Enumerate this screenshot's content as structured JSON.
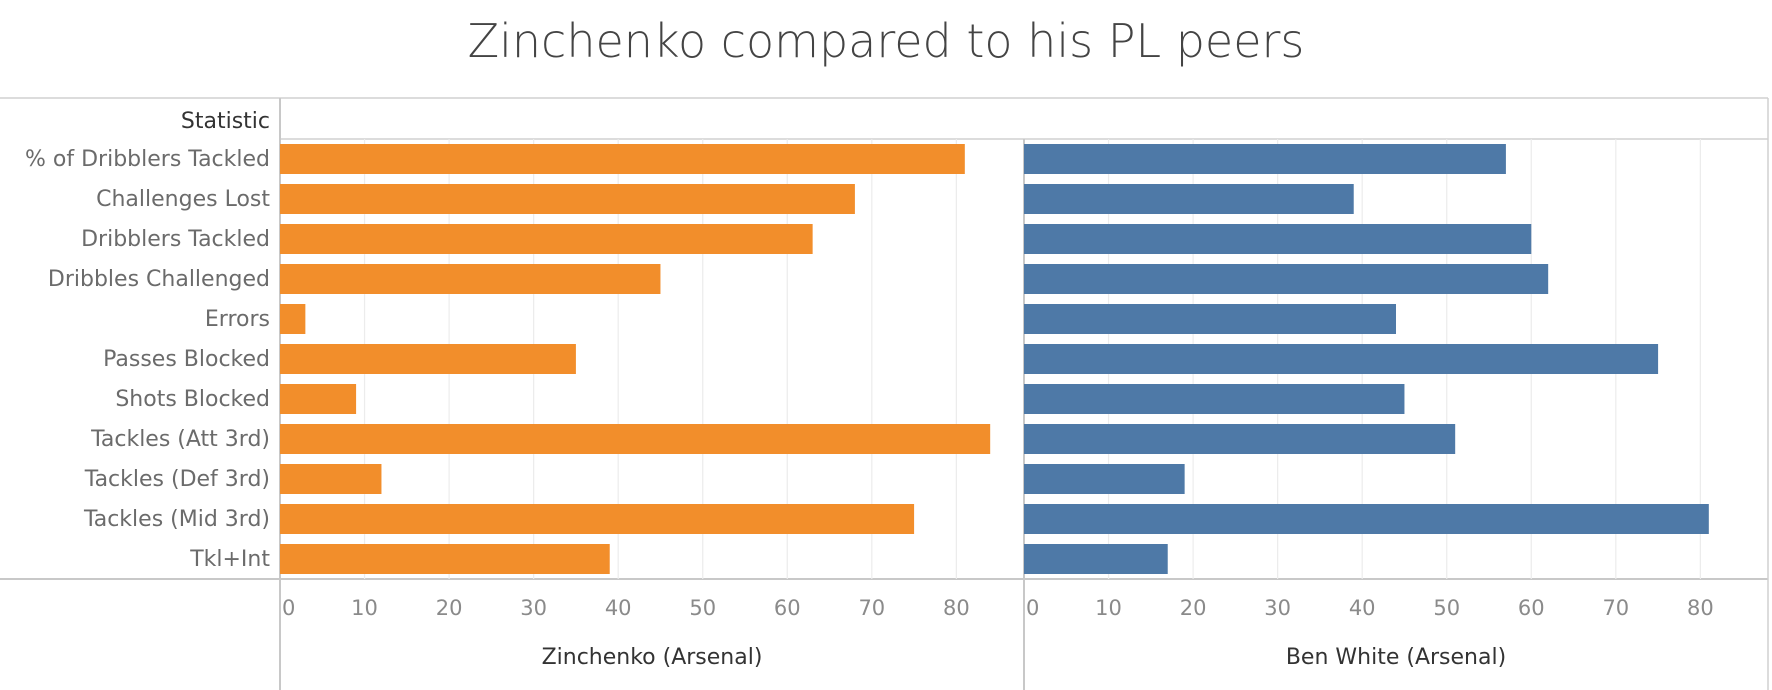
{
  "title": "Zinchenko compared to his PL peers",
  "header_label": "Statistic",
  "chart_data": {
    "type": "bar",
    "orientation": "horizontal",
    "categories": [
      "% of Dribblers Tackled",
      "Challenges Lost",
      "Dribblers Tackled",
      "Dribbles Challenged",
      "Errors",
      "Passes Blocked",
      "Shots Blocked",
      "Tackles (Att 3rd)",
      "Tackles (Def 3rd)",
      "Tackles (Mid 3rd)",
      "Tkl+Int"
    ],
    "panels": [
      {
        "name": "Zinchenko (Arsenal)",
        "color": "#f28e2b",
        "values": [
          81,
          68,
          63,
          45,
          3,
          35,
          9,
          84,
          12,
          75,
          39
        ]
      },
      {
        "name": "Ben White (Arsenal)",
        "color": "#4e79a7",
        "values": [
          57,
          39,
          60,
          62,
          44,
          75,
          45,
          51,
          19,
          81,
          17
        ]
      }
    ],
    "xticks": [
      0,
      10,
      20,
      30,
      40,
      50,
      60,
      70,
      80
    ],
    "xlim": [
      0,
      88
    ],
    "grid": true
  }
}
